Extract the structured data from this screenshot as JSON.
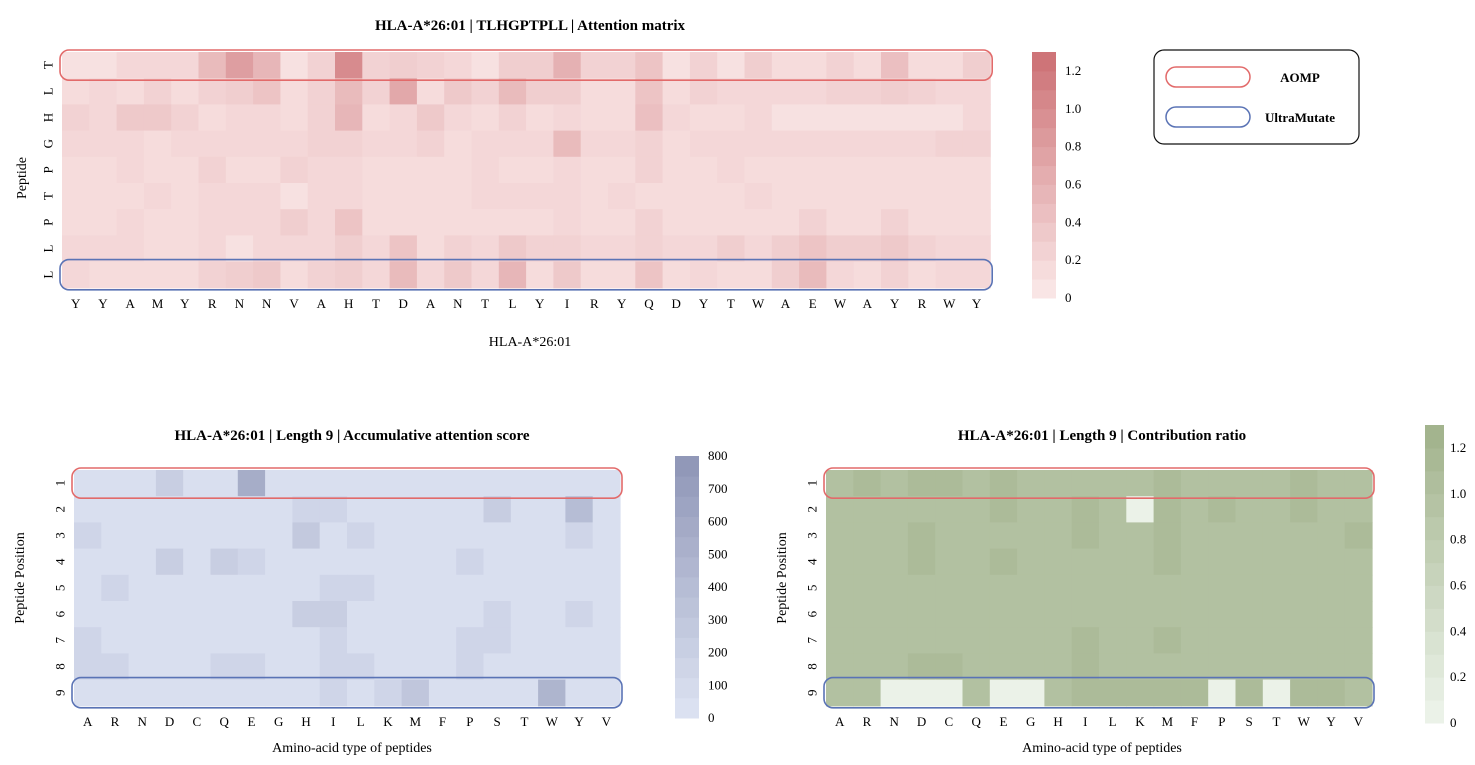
{
  "legend": {
    "items": [
      {
        "label": "AOMP",
        "color": "#e26a6a"
      },
      {
        "label": "UltraMutate",
        "color": "#5a73b5"
      }
    ]
  },
  "chart_data": [
    {
      "type": "heatmap",
      "title": "HLA-A*26:01 | TLHGPTPLL | Attention matrix",
      "xlabel": "HLA-A*26:01",
      "ylabel": "Peptide",
      "x_ticks": [
        "Y",
        "Y",
        "A",
        "M",
        "Y",
        "R",
        "N",
        "N",
        "V",
        "A",
        "H",
        "T",
        "D",
        "A",
        "N",
        "T",
        "L",
        "Y",
        "I",
        "R",
        "Y",
        "Q",
        "D",
        "Y",
        "T",
        "W",
        "A",
        "E",
        "W",
        "A",
        "Y",
        "R",
        "W",
        "Y"
      ],
      "y_ticks": [
        "T",
        "L",
        "H",
        "G",
        "P",
        "T",
        "P",
        "L",
        "L"
      ],
      "colorbar": {
        "ticks": [
          "0",
          "0.2",
          "0.4",
          "0.6",
          "0.8",
          "1.0",
          "1.2"
        ],
        "min": 0,
        "max": 1.3,
        "low_color": "#fbeaea",
        "high_color": "#cc6f73"
      },
      "highlights": [
        {
          "row": 0,
          "legend": "AOMP"
        },
        {
          "row": 8,
          "legend": "UltraMutate"
        }
      ],
      "values": [
        [
          0.1,
          0.1,
          0.2,
          0.2,
          0.2,
          0.5,
          0.8,
          0.55,
          0.1,
          0.25,
          1.0,
          0.25,
          0.3,
          0.25,
          0.2,
          0.1,
          0.3,
          0.3,
          0.6,
          0.25,
          0.25,
          0.4,
          0.1,
          0.25,
          0.1,
          0.3,
          0.15,
          0.15,
          0.25,
          0.15,
          0.45,
          0.15,
          0.15,
          0.3
        ],
        [
          0.15,
          0.2,
          0.15,
          0.25,
          0.15,
          0.25,
          0.3,
          0.4,
          0.15,
          0.25,
          0.5,
          0.25,
          0.7,
          0.15,
          0.35,
          0.25,
          0.5,
          0.3,
          0.3,
          0.15,
          0.15,
          0.4,
          0.15,
          0.25,
          0.2,
          0.2,
          0.2,
          0.2,
          0.25,
          0.25,
          0.3,
          0.25,
          0.2,
          0.2
        ],
        [
          0.25,
          0.2,
          0.35,
          0.35,
          0.25,
          0.15,
          0.2,
          0.2,
          0.15,
          0.25,
          0.55,
          0.15,
          0.2,
          0.35,
          0.2,
          0.15,
          0.25,
          0.15,
          0.2,
          0.15,
          0.15,
          0.45,
          0.2,
          0.15,
          0.15,
          0.2,
          0.1,
          0.1,
          0.1,
          0.1,
          0.1,
          0.1,
          0.1,
          0.2
        ],
        [
          0.2,
          0.2,
          0.2,
          0.15,
          0.2,
          0.2,
          0.2,
          0.2,
          0.2,
          0.25,
          0.25,
          0.2,
          0.2,
          0.25,
          0.15,
          0.2,
          0.2,
          0.2,
          0.5,
          0.2,
          0.2,
          0.25,
          0.15,
          0.2,
          0.2,
          0.2,
          0.2,
          0.2,
          0.2,
          0.2,
          0.2,
          0.2,
          0.25,
          0.25
        ],
        [
          0.15,
          0.15,
          0.2,
          0.15,
          0.15,
          0.25,
          0.15,
          0.15,
          0.25,
          0.2,
          0.2,
          0.15,
          0.15,
          0.15,
          0.15,
          0.2,
          0.15,
          0.15,
          0.2,
          0.15,
          0.15,
          0.25,
          0.15,
          0.15,
          0.2,
          0.15,
          0.15,
          0.15,
          0.15,
          0.15,
          0.15,
          0.15,
          0.15,
          0.15
        ],
        [
          0.15,
          0.15,
          0.15,
          0.2,
          0.15,
          0.2,
          0.2,
          0.2,
          0.1,
          0.2,
          0.2,
          0.15,
          0.15,
          0.15,
          0.15,
          0.2,
          0.2,
          0.2,
          0.2,
          0.15,
          0.2,
          0.15,
          0.15,
          0.15,
          0.15,
          0.2,
          0.15,
          0.15,
          0.15,
          0.15,
          0.15,
          0.15,
          0.15,
          0.15
        ],
        [
          0.15,
          0.15,
          0.2,
          0.15,
          0.15,
          0.2,
          0.2,
          0.2,
          0.3,
          0.2,
          0.4,
          0.15,
          0.15,
          0.15,
          0.15,
          0.15,
          0.15,
          0.15,
          0.2,
          0.15,
          0.15,
          0.25,
          0.15,
          0.15,
          0.15,
          0.15,
          0.15,
          0.25,
          0.15,
          0.15,
          0.25,
          0.15,
          0.15,
          0.15
        ],
        [
          0.2,
          0.2,
          0.2,
          0.15,
          0.15,
          0.2,
          0.1,
          0.2,
          0.2,
          0.2,
          0.3,
          0.2,
          0.4,
          0.15,
          0.25,
          0.2,
          0.35,
          0.25,
          0.25,
          0.2,
          0.2,
          0.25,
          0.2,
          0.2,
          0.3,
          0.2,
          0.3,
          0.4,
          0.3,
          0.3,
          0.35,
          0.25,
          0.2,
          0.2
        ],
        [
          0.2,
          0.15,
          0.15,
          0.15,
          0.15,
          0.25,
          0.3,
          0.35,
          0.15,
          0.25,
          0.3,
          0.2,
          0.5,
          0.2,
          0.35,
          0.2,
          0.55,
          0.15,
          0.35,
          0.15,
          0.15,
          0.4,
          0.15,
          0.2,
          0.15,
          0.15,
          0.3,
          0.5,
          0.2,
          0.15,
          0.25,
          0.15,
          0.2,
          0.2
        ]
      ]
    },
    {
      "type": "heatmap",
      "title": "HLA-A*26:01 | Length 9 | Accumulative attention score",
      "xlabel": "Amino-acid type of peptides",
      "ylabel": "Peptide Position",
      "x_ticks": [
        "A",
        "R",
        "N",
        "D",
        "C",
        "Q",
        "E",
        "G",
        "H",
        "I",
        "L",
        "K",
        "M",
        "F",
        "P",
        "S",
        "T",
        "W",
        "Y",
        "V"
      ],
      "y_ticks": [
        "1",
        "2",
        "3",
        "4",
        "5",
        "6",
        "7",
        "8",
        "9"
      ],
      "colorbar": {
        "ticks": [
          "0",
          "100",
          "200",
          "300",
          "400",
          "500",
          "600",
          "700",
          "800"
        ],
        "min": 0,
        "max": 800,
        "low_color": "#dee4f3",
        "high_color": "#8e95b6"
      },
      "highlights": [
        {
          "row": 0,
          "legend": "AOMP"
        },
        {
          "row": 8,
          "legend": "UltraMutate"
        }
      ],
      "values": [
        [
          50,
          50,
          50,
          220,
          50,
          50,
          560,
          50,
          50,
          50,
          50,
          50,
          50,
          50,
          50,
          50,
          50,
          50,
          50,
          50
        ],
        [
          50,
          50,
          50,
          50,
          50,
          50,
          50,
          50,
          150,
          150,
          50,
          50,
          50,
          50,
          50,
          230,
          50,
          50,
          400,
          50
        ],
        [
          150,
          50,
          50,
          50,
          50,
          50,
          50,
          50,
          270,
          50,
          150,
          50,
          50,
          50,
          50,
          50,
          50,
          50,
          150,
          50
        ],
        [
          50,
          50,
          50,
          220,
          50,
          220,
          150,
          50,
          50,
          50,
          50,
          50,
          50,
          50,
          150,
          50,
          50,
          50,
          50,
          50
        ],
        [
          50,
          150,
          50,
          50,
          50,
          50,
          50,
          50,
          50,
          150,
          150,
          50,
          50,
          50,
          50,
          50,
          50,
          50,
          50,
          50
        ],
        [
          50,
          50,
          50,
          50,
          50,
          50,
          50,
          50,
          220,
          220,
          50,
          50,
          50,
          50,
          50,
          150,
          50,
          50,
          150,
          50
        ],
        [
          150,
          50,
          50,
          50,
          50,
          50,
          50,
          50,
          50,
          150,
          50,
          50,
          50,
          50,
          150,
          150,
          50,
          50,
          50,
          50
        ],
        [
          150,
          150,
          50,
          50,
          50,
          150,
          150,
          50,
          50,
          150,
          150,
          50,
          50,
          50,
          150,
          50,
          50,
          50,
          50,
          50
        ],
        [
          50,
          50,
          50,
          50,
          50,
          50,
          50,
          50,
          50,
          150,
          50,
          150,
          300,
          50,
          50,
          50,
          50,
          480,
          50,
          50
        ]
      ]
    },
    {
      "type": "heatmap",
      "title": "HLA-A*26:01 | Length 9 | Contribution ratio",
      "xlabel": "Amino-acid type of peptides",
      "ylabel": "Peptide Position",
      "x_ticks": [
        "A",
        "R",
        "N",
        "D",
        "C",
        "Q",
        "E",
        "G",
        "H",
        "I",
        "L",
        "K",
        "M",
        "F",
        "P",
        "S",
        "T",
        "W",
        "Y",
        "V"
      ],
      "y_ticks": [
        "1",
        "2",
        "3",
        "4",
        "5",
        "6",
        "7",
        "8",
        "9"
      ],
      "colorbar": {
        "ticks": [
          "0",
          "0.2",
          "0.4",
          "0.6",
          "0.8",
          "1.0",
          "1.2"
        ],
        "min": 0,
        "max": 1.3,
        "low_color": "#eef5ec",
        "high_color": "#a0b18a"
      },
      "highlights": [
        {
          "row": 0,
          "legend": "AOMP"
        },
        {
          "row": 8,
          "legend": "UltraMutate"
        }
      ],
      "values": [
        [
          1.0,
          1.1,
          1.0,
          1.1,
          1.1,
          1.0,
          1.1,
          1.0,
          1.0,
          1.0,
          1.0,
          1.0,
          1.1,
          1.0,
          1.0,
          1.0,
          1.0,
          1.1,
          1.0,
          1.0
        ],
        [
          1.0,
          1.0,
          1.0,
          1.0,
          1.0,
          1.0,
          1.1,
          1.0,
          1.0,
          1.1,
          1.0,
          0.05,
          1.1,
          1.0,
          1.1,
          1.0,
          1.0,
          1.1,
          1.0,
          1.0
        ],
        [
          1.0,
          1.0,
          1.0,
          1.1,
          1.0,
          1.0,
          1.0,
          1.0,
          1.0,
          1.1,
          1.0,
          1.0,
          1.1,
          1.0,
          1.0,
          1.0,
          1.0,
          1.0,
          1.0,
          1.1
        ],
        [
          1.0,
          1.0,
          1.0,
          1.1,
          1.0,
          1.0,
          1.1,
          1.0,
          1.0,
          1.0,
          1.0,
          1.0,
          1.1,
          1.0,
          1.0,
          1.0,
          1.0,
          1.0,
          1.0,
          1.0
        ],
        [
          1.0,
          1.0,
          1.0,
          1.0,
          1.0,
          1.0,
          1.0,
          1.0,
          1.0,
          1.0,
          1.0,
          1.0,
          1.0,
          1.0,
          1.0,
          1.0,
          1.0,
          1.0,
          1.0,
          1.0
        ],
        [
          1.0,
          1.0,
          1.0,
          1.0,
          1.0,
          1.0,
          1.0,
          1.0,
          1.0,
          1.0,
          1.0,
          1.0,
          1.0,
          1.0,
          1.0,
          1.0,
          1.0,
          1.0,
          1.0,
          1.0
        ],
        [
          1.0,
          1.0,
          1.0,
          1.0,
          1.0,
          1.0,
          1.0,
          1.0,
          1.0,
          1.1,
          1.0,
          1.0,
          1.1,
          1.0,
          1.0,
          1.0,
          1.0,
          1.0,
          1.0,
          1.0
        ],
        [
          1.0,
          1.0,
          1.0,
          1.1,
          1.1,
          1.0,
          1.0,
          1.0,
          1.0,
          1.1,
          1.0,
          1.0,
          1.0,
          1.0,
          1.0,
          1.0,
          1.0,
          1.0,
          1.0,
          1.0
        ],
        [
          1.0,
          1.0,
          0.05,
          0.05,
          0.05,
          1.0,
          0.05,
          0.05,
          1.0,
          1.1,
          1.1,
          1.1,
          1.1,
          1.1,
          0.05,
          1.1,
          0.05,
          1.1,
          1.1,
          1.0
        ]
      ]
    }
  ]
}
